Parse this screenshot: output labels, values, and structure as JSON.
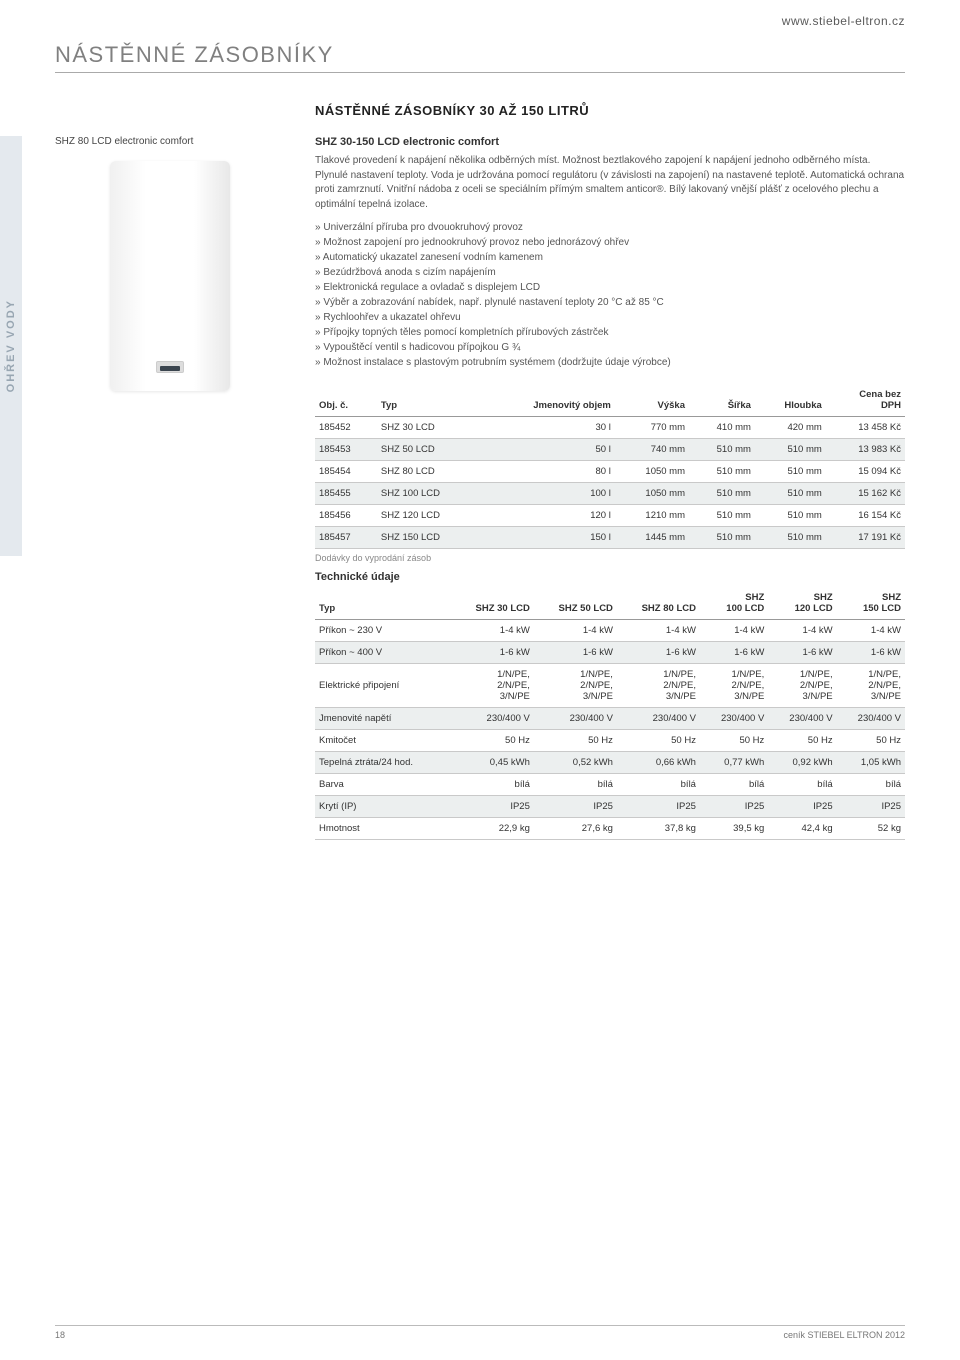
{
  "url": "www.stiebel-eltron.cz",
  "category_title": "NÁSTĚNNÉ ZÁSOBNÍKY",
  "sidebar_tab": "OHŘEV VODY",
  "section_title": "NÁSTĚNNÉ ZÁSOBNÍKY 30 AŽ 150 LITRŮ",
  "product_name_label": "SHZ 80 LCD electronic comfort",
  "product_code": "SHZ 30-150 LCD electronic comfort",
  "description": "Tlakové provedení k napájení několika odběrných míst. Možnost beztlakového zapojení k napájení jednoho odběrného místa. Plynulé nastavení teploty. Voda je udržována pomocí regulátoru (v závislosti na zapojení) na nastavené teplotě. Automatická ochrana proti zamrznutí. Vnitřní nádoba z oceli se speciálním přímým smaltem anticor®. Bílý lakovaný vnější plášť z ocelového plechu a optimální tepelná izolace.",
  "features": [
    "Univerzální příruba pro dvouokruhový provoz",
    "Možnost zapojení pro jednookruhový provoz nebo jednorázový ohřev",
    "Automatický ukazatel zanesení vodním kamenem",
    "Bezúdržbová anoda s cizím napájením",
    "Elektronická regulace a ovladač s displejem LCD",
    "Výběr a zobrazování nabídek, např. plynulé nastavení teploty 20 °C až 85 °C",
    "Rychloohřev a ukazatel ohřevu",
    "Přípojky topných těles pomocí kompletních přírubových zástrček",
    "Vypouštěcí ventil s hadicovou přípojkou G ¾",
    "Možnost instalace s plastovým potrubním systémem (dodržujte údaje výrobce)"
  ],
  "products_table": {
    "headers": [
      "Obj. č.",
      "Typ",
      "Jmenovitý objem",
      "Výška",
      "Šířka",
      "Hloubka",
      "Cena bez DPH"
    ],
    "rows": [
      [
        "185452",
        "SHZ 30 LCD",
        "30 l",
        "770 mm",
        "410 mm",
        "420 mm",
        "13 458 Kč"
      ],
      [
        "185453",
        "SHZ 50 LCD",
        "50 l",
        "740 mm",
        "510 mm",
        "510 mm",
        "13 983 Kč"
      ],
      [
        "185454",
        "SHZ 80 LCD",
        "80 l",
        "1050 mm",
        "510 mm",
        "510 mm",
        "15 094 Kč"
      ],
      [
        "185455",
        "SHZ 100 LCD",
        "100 l",
        "1050 mm",
        "510 mm",
        "510 mm",
        "15 162 Kč"
      ],
      [
        "185456",
        "SHZ 120 LCD",
        "120 l",
        "1210 mm",
        "510 mm",
        "510 mm",
        "16 154 Kč"
      ],
      [
        "185457",
        "SHZ 150 LCD",
        "150 l",
        "1445 mm",
        "510 mm",
        "510 mm",
        "17 191 Kč"
      ]
    ]
  },
  "delivery_note": "Dodávky do vyprodání zásob",
  "tech_heading": "Technické údaje",
  "tech_table": {
    "col_headers": [
      "Typ",
      "SHZ 30 LCD",
      "SHZ 50 LCD",
      "SHZ 80 LCD",
      "SHZ 100 LCD",
      "SHZ 120 LCD",
      "SHZ 150 LCD"
    ],
    "rows": [
      [
        "Příkon ~ 230 V",
        "1-4 kW",
        "1-4 kW",
        "1-4 kW",
        "1-4 kW",
        "1-4 kW",
        "1-4 kW"
      ],
      [
        "Příkon ~ 400 V",
        "1-6 kW",
        "1-6 kW",
        "1-6 kW",
        "1-6 kW",
        "1-6 kW",
        "1-6 kW"
      ],
      [
        "Elektrické připojení",
        "1/N/PE, 2/N/PE, 3/N/PE",
        "1/N/PE, 2/N/PE, 3/N/PE",
        "1/N/PE, 2/N/PE, 3/N/PE",
        "1/N/PE, 2/N/PE, 3/N/PE",
        "1/N/PE, 2/N/PE, 3/N/PE",
        "1/N/PE, 2/N/PE, 3/N/PE"
      ],
      [
        "Jmenovité napětí",
        "230/400 V",
        "230/400 V",
        "230/400 V",
        "230/400 V",
        "230/400 V",
        "230/400 V"
      ],
      [
        "Kmitočet",
        "50 Hz",
        "50 Hz",
        "50 Hz",
        "50 Hz",
        "50 Hz",
        "50 Hz"
      ],
      [
        "Tepelná ztráta/24 hod.",
        "0,45 kWh",
        "0,52 kWh",
        "0,66 kWh",
        "0,77 kWh",
        "0,92 kWh",
        "1,05 kWh"
      ],
      [
        "Barva",
        "bílá",
        "bílá",
        "bílá",
        "bílá",
        "bílá",
        "bílá"
      ],
      [
        "Krytí (IP)",
        "IP25",
        "IP25",
        "IP25",
        "IP25",
        "IP25",
        "IP25"
      ],
      [
        "Hmotnost",
        "22,9 kg",
        "27,6 kg",
        "37,8 kg",
        "39,5 kg",
        "42,4 kg",
        "52 kg"
      ]
    ]
  },
  "footer": {
    "page": "18",
    "text": "ceník STIEBEL ELTRON 2012"
  }
}
